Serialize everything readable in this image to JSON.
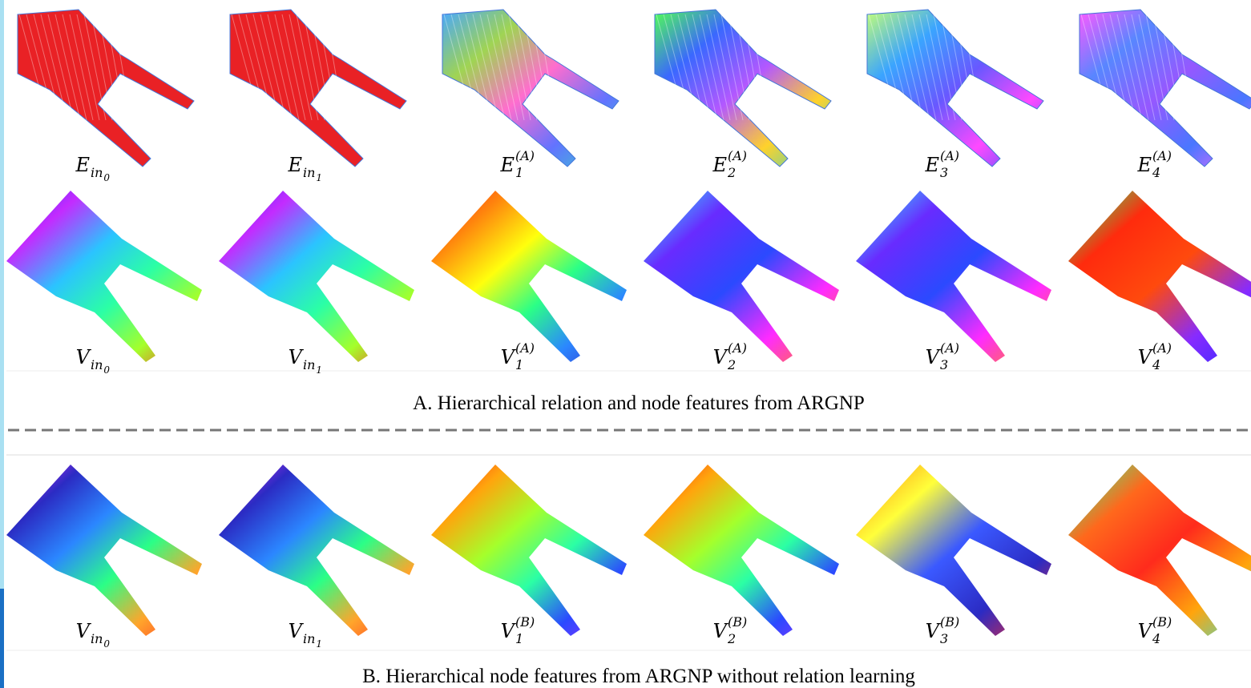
{
  "panel_a": {
    "rows": [
      [
        {
          "base": "E",
          "sub": "in",
          "sub2": "0"
        },
        {
          "base": "E",
          "sub": "in",
          "sub2": "1"
        },
        {
          "base": "E",
          "sub": "1",
          "sup": "(A)"
        },
        {
          "base": "E",
          "sub": "2",
          "sup": "(A)"
        },
        {
          "base": "E",
          "sub": "3",
          "sup": "(A)"
        },
        {
          "base": "E",
          "sub": "4",
          "sup": "(A)"
        }
      ],
      [
        {
          "base": "V",
          "sub": "in",
          "sub2": "0"
        },
        {
          "base": "V",
          "sub": "in",
          "sub2": "1"
        },
        {
          "base": "V",
          "sub": "1",
          "sup": "(A)"
        },
        {
          "base": "V",
          "sub": "2",
          "sup": "(A)"
        },
        {
          "base": "V",
          "sub": "3",
          "sup": "(A)"
        },
        {
          "base": "V",
          "sub": "4",
          "sup": "(A)"
        }
      ]
    ],
    "caption": "A. Hierarchical relation and node features  from ARGNP"
  },
  "panel_b": {
    "rows": [
      [
        {
          "base": "V",
          "sub": "in",
          "sub2": "0"
        },
        {
          "base": "V",
          "sub": "in",
          "sub2": "1"
        },
        {
          "base": "V",
          "sub": "1",
          "sup": "(B)"
        },
        {
          "base": "V",
          "sub": "2",
          "sup": "(B)"
        },
        {
          "base": "V",
          "sub": "3",
          "sup": "(B)"
        },
        {
          "base": "V",
          "sub": "4",
          "sup": "(B)"
        }
      ]
    ],
    "caption": "B. Hierarchical node features from ARGNP without relation learning"
  }
}
